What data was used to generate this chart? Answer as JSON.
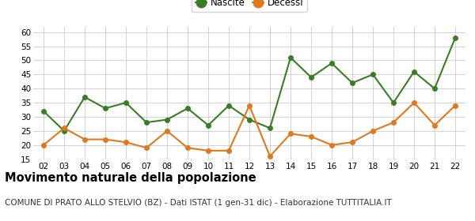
{
  "years": [
    2,
    3,
    4,
    5,
    6,
    7,
    8,
    9,
    10,
    11,
    12,
    13,
    14,
    15,
    16,
    17,
    18,
    19,
    20,
    21,
    22
  ],
  "nascite": [
    32,
    25,
    37,
    33,
    35,
    28,
    29,
    33,
    27,
    34,
    29,
    26,
    51,
    44,
    49,
    42,
    45,
    35,
    46,
    40,
    58
  ],
  "decessi": [
    20,
    26,
    22,
    22,
    21,
    19,
    25,
    19,
    18,
    18,
    34,
    16,
    24,
    23,
    20,
    21,
    25,
    28,
    35,
    27,
    34
  ],
  "nascite_color": "#3a7d27",
  "decessi_color": "#e07820",
  "background_color": "#ffffff",
  "grid_color": "#cccccc",
  "ylim": [
    15,
    62
  ],
  "yticks": [
    15,
    20,
    25,
    30,
    35,
    40,
    45,
    50,
    55,
    60
  ],
  "title": "Movimento naturale della popolazione",
  "subtitle": "COMUNE DI PRATO ALLO STELVIO (BZ) - Dati ISTAT (1 gen-31 dic) - Elaborazione TUTTITALIA.IT",
  "title_fontsize": 10.5,
  "subtitle_fontsize": 7.5,
  "legend_nascite": "Nascite",
  "legend_decessi": "Decessi",
  "marker_size": 4,
  "line_width": 1.5
}
